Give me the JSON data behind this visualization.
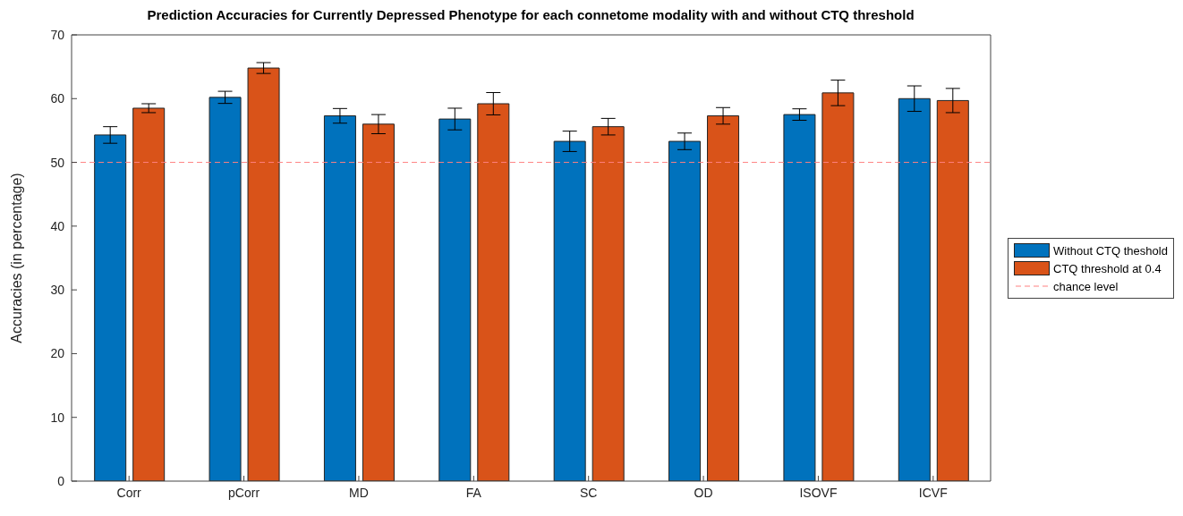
{
  "chart_data": {
    "type": "bar",
    "title": "Prediction Accuracies for Currently Depressed Phenotype for each connetome modality with and without CTQ threshold",
    "ylabel": "Accuracies (in percentage)",
    "categories": [
      "Corr",
      "pCorr",
      "MD",
      "FA",
      "SC",
      "OD",
      "ISOVF",
      "ICVF"
    ],
    "series": [
      {
        "name": "Without CTQ theshold",
        "color": "#0072bd",
        "values": [
          54.3,
          60.2,
          57.3,
          56.8,
          53.3,
          53.3,
          57.5,
          60.0
        ],
        "errors": [
          1.3,
          0.95,
          1.15,
          1.7,
          1.6,
          1.3,
          0.9,
          2.0
        ]
      },
      {
        "name": "CTQ threshold at 0.4",
        "color": "#d95319",
        "values": [
          58.5,
          64.8,
          56.0,
          59.2,
          55.6,
          57.3,
          60.9,
          59.7
        ],
        "errors": [
          0.7,
          0.85,
          1.5,
          1.75,
          1.3,
          1.3,
          2.0,
          1.9
        ]
      }
    ],
    "ylim": [
      0,
      70
    ],
    "yticks": [
      0,
      10,
      20,
      30,
      40,
      50,
      60,
      70
    ],
    "grid": false,
    "legend": "right",
    "ref_lines": [
      {
        "axis": "y",
        "value": 50,
        "label": "chance level",
        "color": "#ff8080",
        "line_style": "dashed"
      }
    ]
  }
}
